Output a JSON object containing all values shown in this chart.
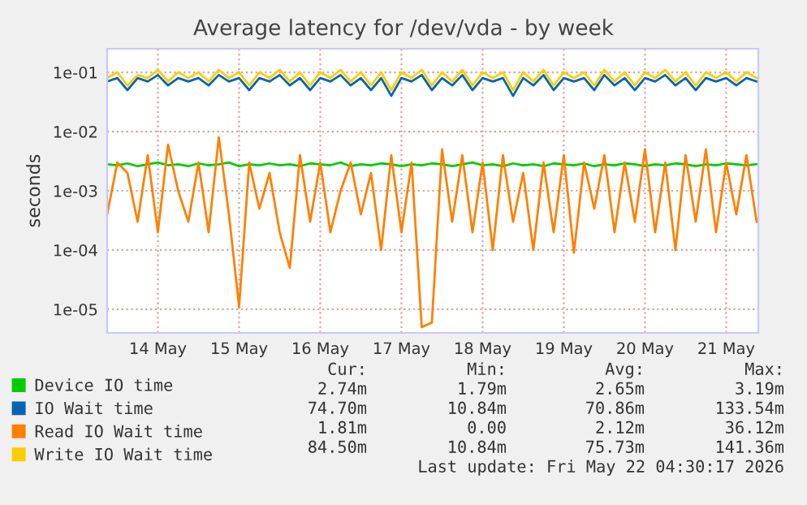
{
  "chart_data": {
    "type": "line",
    "title": "Average latency for /dev/vda - by week",
    "ylabel": "seconds",
    "x": [
      "2026-05-13T21:00",
      "2026-05-14T00:00",
      "2026-05-14T03:00",
      "2026-05-14T06:00",
      "2026-05-14T09:00",
      "2026-05-14T12:00",
      "2026-05-14T15:00",
      "2026-05-14T18:00",
      "2026-05-14T21:00",
      "2026-05-15T00:00",
      "2026-05-15T03:00",
      "2026-05-15T06:00",
      "2026-05-15T09:00",
      "2026-05-15T12:00",
      "2026-05-15T15:00",
      "2026-05-15T18:00",
      "2026-05-15T21:00",
      "2026-05-16T00:00",
      "2026-05-16T03:00",
      "2026-05-16T06:00",
      "2026-05-16T09:00",
      "2026-05-16T12:00",
      "2026-05-16T15:00",
      "2026-05-16T18:00",
      "2026-05-16T21:00",
      "2026-05-17T00:00",
      "2026-05-17T03:00",
      "2026-05-17T06:00",
      "2026-05-17T09:00",
      "2026-05-17T12:00",
      "2026-05-17T15:00",
      "2026-05-17T18:00",
      "2026-05-17T21:00",
      "2026-05-18T00:00",
      "2026-05-18T03:00",
      "2026-05-18T06:00",
      "2026-05-18T09:00",
      "2026-05-18T12:00",
      "2026-05-18T15:00",
      "2026-05-18T18:00",
      "2026-05-18T21:00",
      "2026-05-19T00:00",
      "2026-05-19T03:00",
      "2026-05-19T06:00",
      "2026-05-19T09:00",
      "2026-05-19T12:00",
      "2026-05-19T15:00",
      "2026-05-19T18:00",
      "2026-05-19T21:00",
      "2026-05-20T00:00",
      "2026-05-20T03:00",
      "2026-05-20T06:00",
      "2026-05-20T09:00",
      "2026-05-20T12:00",
      "2026-05-20T15:00",
      "2026-05-20T18:00",
      "2026-05-20T21:00",
      "2026-05-21T00:00",
      "2026-05-21T03:00",
      "2026-05-21T06:00",
      "2026-05-21T09:00",
      "2026-05-21T12:00",
      "2026-05-21T15:00",
      "2026-05-21T18:00",
      "2026-05-21T21:00"
    ],
    "series": [
      {
        "name": "Device IO time",
        "color": "#00cc00",
        "values": [
          0.0028,
          0.0027,
          0.0029,
          0.0026,
          0.0028,
          0.003,
          0.0027,
          0.0028,
          0.0026,
          0.0029,
          0.0027,
          0.0028,
          0.003,
          0.0026,
          0.0028,
          0.0027,
          0.0029,
          0.0027,
          0.0028,
          0.0026,
          0.0029,
          0.0028,
          0.0027,
          0.003,
          0.0026,
          0.0028,
          0.0027,
          0.0029,
          0.0028,
          0.0026,
          0.0028,
          0.0027,
          0.0029,
          0.0028,
          0.0026,
          0.0028,
          0.003,
          0.0027,
          0.0028,
          0.0026,
          0.0029,
          0.0027,
          0.0028,
          0.0026,
          0.0029,
          0.0028,
          0.0027,
          0.0029,
          0.0026,
          0.0028,
          0.0027,
          0.0029,
          0.0028,
          0.0026,
          0.0028,
          0.0027,
          0.0029,
          0.0028,
          0.0026,
          0.0028,
          0.0027,
          0.0029,
          0.0028,
          0.0027,
          0.0028
        ]
      },
      {
        "name": "IO Wait time",
        "color": "#0066b3",
        "values": [
          0.07,
          0.08,
          0.05,
          0.08,
          0.07,
          0.09,
          0.06,
          0.08,
          0.07,
          0.08,
          0.06,
          0.09,
          0.07,
          0.08,
          0.05,
          0.08,
          0.07,
          0.09,
          0.06,
          0.08,
          0.05,
          0.08,
          0.07,
          0.09,
          0.06,
          0.08,
          0.05,
          0.08,
          0.04,
          0.08,
          0.07,
          0.09,
          0.05,
          0.08,
          0.06,
          0.09,
          0.05,
          0.08,
          0.07,
          0.08,
          0.04,
          0.08,
          0.06,
          0.09,
          0.05,
          0.08,
          0.07,
          0.08,
          0.05,
          0.09,
          0.06,
          0.08,
          0.05,
          0.08,
          0.07,
          0.09,
          0.06,
          0.08,
          0.05,
          0.08,
          0.07,
          0.08,
          0.06,
          0.08,
          0.07
        ]
      },
      {
        "name": "Read IO Wait time",
        "color": "#ff8000",
        "values": [
          0.0004,
          0.003,
          0.002,
          0.0003,
          0.004,
          0.0002,
          0.006,
          0.001,
          0.0003,
          0.003,
          0.0002,
          0.008,
          0.0004,
          1.1e-05,
          0.003,
          0.0005,
          0.002,
          0.0002,
          5e-05,
          0.004,
          0.0003,
          0.003,
          0.0002,
          0.001,
          0.003,
          0.0004,
          0.002,
          0.0001,
          0.004,
          0.0002,
          0.003,
          5e-06,
          6e-06,
          0.005,
          0.0003,
          0.004,
          0.0002,
          0.003,
          0.0001,
          0.004,
          0.0003,
          0.002,
          0.0001,
          0.003,
          0.0002,
          0.004,
          9e-05,
          0.003,
          0.0005,
          0.004,
          0.0002,
          0.003,
          0.0003,
          0.005,
          0.0002,
          0.003,
          0.0001,
          0.004,
          0.0003,
          0.005,
          0.0002,
          0.003,
          0.0004,
          0.004,
          0.0003
        ]
      },
      {
        "name": "Write IO Wait time",
        "color": "#ffcc00",
        "values": [
          0.08,
          0.1,
          0.06,
          0.09,
          0.08,
          0.11,
          0.07,
          0.1,
          0.08,
          0.1,
          0.07,
          0.11,
          0.08,
          0.1,
          0.06,
          0.1,
          0.08,
          0.11,
          0.07,
          0.1,
          0.06,
          0.1,
          0.08,
          0.11,
          0.07,
          0.1,
          0.06,
          0.1,
          0.05,
          0.1,
          0.08,
          0.11,
          0.06,
          0.1,
          0.07,
          0.11,
          0.06,
          0.1,
          0.08,
          0.1,
          0.05,
          0.1,
          0.07,
          0.11,
          0.06,
          0.1,
          0.08,
          0.1,
          0.06,
          0.11,
          0.07,
          0.1,
          0.06,
          0.1,
          0.08,
          0.11,
          0.07,
          0.1,
          0.06,
          0.1,
          0.08,
          0.1,
          0.07,
          0.1,
          0.08
        ]
      }
    ],
    "xlim": [
      "2026-05-13T21:00",
      "2026-05-21T21:30"
    ],
    "xticks": [
      {
        "value": "2026-05-14T12:00",
        "label": "14 May"
      },
      {
        "value": "2026-05-15T12:00",
        "label": "15 May"
      },
      {
        "value": "2026-05-16T12:00",
        "label": "16 May"
      },
      {
        "value": "2026-05-17T12:00",
        "label": "17 May"
      },
      {
        "value": "2026-05-18T12:00",
        "label": "18 May"
      },
      {
        "value": "2026-05-19T12:00",
        "label": "19 May"
      },
      {
        "value": "2026-05-20T12:00",
        "label": "20 May"
      },
      {
        "value": "2026-05-21T12:00",
        "label": "21 May"
      }
    ],
    "log": true,
    "ylim": [
      4e-06,
      0.25
    ],
    "yticks": [
      {
        "value": 1e-05,
        "label": "1e-05"
      },
      {
        "value": 0.0001,
        "label": "1e-04"
      },
      {
        "value": 0.001,
        "label": "1e-03"
      },
      {
        "value": 0.01,
        "label": "1e-02"
      },
      {
        "value": 0.1,
        "label": "1e-01"
      }
    ],
    "grid": true,
    "legend": "bottom",
    "marker": "none",
    "line_style": "solid",
    "annotations": [
      "Cur:",
      "Min:",
      "Avg:",
      "Max:",
      "2.74m",
      "1.79m",
      "2.65m",
      "3.19m",
      "74.70m",
      "10.84m",
      "70.86m",
      "133.54m",
      "1.81m",
      "0.00",
      "2.12m",
      "36.12m",
      "84.50m",
      "10.84m",
      "75.73m",
      "141.36m",
      "Last update: Fri May 22 04:30:17 2026"
    ]
  }
}
